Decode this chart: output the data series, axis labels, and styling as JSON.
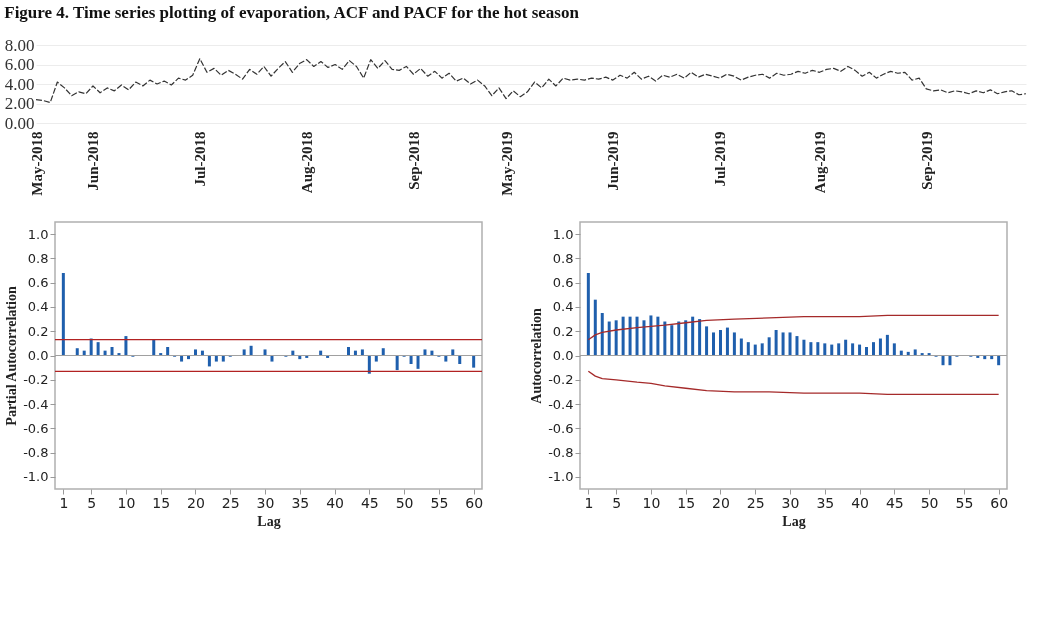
{
  "chart_data": [
    {
      "type": "line",
      "title": "Figure 4. Time series plotting of evaporation, ACF and PACF for the hot season",
      "categories": [
        "May-2018",
        null,
        null,
        null,
        null,
        null,
        null,
        null,
        "Jun-2018",
        null,
        null,
        null,
        null,
        null,
        null,
        null,
        null,
        null,
        null,
        null,
        null,
        null,
        null,
        "Jul-2018",
        null,
        null,
        null,
        null,
        null,
        null,
        null,
        null,
        null,
        null,
        null,
        null,
        null,
        null,
        "Aug-2018",
        null,
        null,
        null,
        null,
        null,
        null,
        null,
        null,
        null,
        null,
        null,
        null,
        null,
        null,
        "Sep-2018",
        null,
        null,
        null,
        null,
        null,
        null,
        null,
        null,
        null,
        null,
        null,
        null,
        "May-2019",
        null,
        null,
        null,
        null,
        null,
        null,
        null,
        null,
        null,
        null,
        null,
        null,
        null,
        null,
        "Jun-2019",
        null,
        null,
        null,
        null,
        null,
        null,
        null,
        null,
        null,
        null,
        null,
        null,
        null,
        null,
        "Jul-2019",
        null,
        null,
        null,
        null,
        null,
        null,
        null,
        null,
        null,
        null,
        null,
        null,
        null,
        "Aug-2019",
        null,
        null,
        null,
        null,
        null,
        null,
        null,
        null,
        null,
        null,
        null,
        null,
        null,
        null,
        "Sep-2019",
        null,
        null,
        null,
        null,
        null,
        null,
        null,
        null,
        null,
        null,
        null,
        null,
        null,
        null
      ],
      "series": [
        {
          "color": "#333333",
          "values": [
            2.4,
            2.3,
            2.1,
            4.2,
            3.6,
            2.8,
            3.2,
            3.0,
            3.8,
            3.1,
            3.6,
            3.3,
            3.9,
            3.4,
            4.2,
            3.8,
            4.4,
            4.0,
            4.3,
            3.9,
            4.6,
            4.4,
            4.9,
            6.6,
            5.2,
            5.6,
            4.9,
            5.4,
            5.0,
            4.5,
            5.5,
            5.0,
            5.8,
            4.8,
            5.6,
            6.3,
            5.2,
            6.1,
            6.5,
            5.8,
            6.3,
            5.7,
            6.0,
            5.5,
            6.4,
            5.8,
            4.6,
            6.5,
            5.6,
            6.4,
            5.5,
            5.4,
            5.8,
            5.0,
            5.6,
            4.8,
            5.3,
            4.6,
            5.1,
            4.3,
            4.6,
            4.0,
            4.4,
            3.8,
            2.8,
            3.6,
            2.5,
            3.3,
            2.7,
            3.2,
            4.2,
            3.6,
            4.5,
            3.8,
            4.6,
            4.4,
            4.5,
            4.4,
            4.6,
            4.5,
            4.7,
            4.4,
            4.9,
            4.6,
            5.2,
            4.5,
            4.8,
            4.3,
            4.9,
            4.7,
            5.0,
            4.6,
            5.2,
            4.7,
            5.0,
            4.8,
            4.6,
            5.0,
            4.8,
            4.4,
            4.7,
            4.9,
            5.0,
            4.6,
            5.1,
            4.9,
            5.0,
            5.3,
            5.1,
            5.4,
            5.2,
            5.5,
            5.6,
            5.3,
            5.8,
            5.4,
            4.8,
            5.2,
            4.6,
            5.0,
            5.3,
            5.1,
            5.2,
            4.4,
            4.6,
            3.5,
            3.3,
            3.4,
            3.1,
            3.3,
            3.2,
            3.0,
            3.3,
            3.1,
            3.4,
            3.0,
            3.2,
            3.3,
            2.9,
            3.0
          ]
        }
      ],
      "ylim": [
        0,
        8
      ],
      "yticks": [
        {
          "value": 0,
          "label": "0.00"
        },
        {
          "value": 2,
          "label": "2.00"
        },
        {
          "value": 4,
          "label": "4.00"
        },
        {
          "value": 6,
          "label": "6.00"
        },
        {
          "value": 8,
          "label": "8.00"
        }
      ],
      "grid": "y",
      "line_style": "dashed"
    },
    {
      "type": "bar",
      "xlabel": "Lag",
      "ylabel": "Partial Autocorrelation",
      "x": [
        1,
        2,
        3,
        4,
        5,
        6,
        7,
        8,
        9,
        10,
        11,
        12,
        13,
        14,
        15,
        16,
        17,
        18,
        19,
        20,
        21,
        22,
        23,
        24,
        25,
        26,
        27,
        28,
        29,
        30,
        31,
        32,
        33,
        34,
        35,
        36,
        37,
        38,
        39,
        40,
        41,
        42,
        43,
        44,
        45,
        46,
        47,
        48,
        49,
        50,
        51,
        52,
        53,
        54,
        55,
        56,
        57,
        58,
        59,
        60
      ],
      "series": [
        {
          "color": "#1f5fad",
          "values": [
            0.68,
            0,
            0.06,
            0.04,
            0.14,
            0.11,
            0.04,
            0.07,
            0.02,
            0.16,
            -0.01,
            0,
            0,
            0.13,
            0.02,
            0.07,
            -0.01,
            -0.05,
            -0.03,
            0.05,
            0.04,
            -0.09,
            -0.05,
            -0.05,
            -0.01,
            0,
            0.05,
            0.08,
            0,
            0.05,
            -0.05,
            0,
            -0.01,
            0.04,
            -0.03,
            -0.02,
            0,
            0.04,
            -0.02,
            0,
            0,
            0.07,
            0.04,
            0.05,
            -0.15,
            -0.05,
            0.06,
            0,
            -0.12,
            -0.01,
            -0.07,
            -0.11,
            0.05,
            0.04,
            -0.01,
            -0.05,
            0.05,
            -0.07,
            0,
            -0.1
          ]
        }
      ],
      "ref_lines": [
        {
          "axis": "y",
          "value": 0,
          "color": "#a0a0a0"
        },
        {
          "axis": "y",
          "value": 0.13,
          "color": "#b22222"
        },
        {
          "axis": "y",
          "value": -0.13,
          "color": "#b22222"
        }
      ],
      "xlim": [
        -0.2,
        61.2
      ],
      "xticks": [
        1,
        5,
        10,
        15,
        20,
        25,
        30,
        35,
        40,
        45,
        50,
        55,
        60
      ],
      "ylim": [
        -1.1,
        1.1
      ],
      "yticks": [
        {
          "value": -1,
          "label": "-1.0"
        },
        {
          "value": -0.8,
          "label": "-0.8"
        },
        {
          "value": -0.6,
          "label": "-0.6"
        },
        {
          "value": -0.4,
          "label": "-0.4"
        },
        {
          "value": -0.2,
          "label": "-0.2"
        },
        {
          "value": 0,
          "label": "0.0"
        },
        {
          "value": 0.2,
          "label": "0.2"
        },
        {
          "value": 0.4,
          "label": "0.4"
        },
        {
          "value": 0.6,
          "label": "0.6"
        },
        {
          "value": 0.8,
          "label": "0.8"
        },
        {
          "value": 1,
          "label": "1.0"
        }
      ]
    },
    {
      "type": "bar",
      "xlabel": "Lag",
      "ylabel": "Autocorrelation",
      "x": [
        1,
        2,
        3,
        4,
        5,
        6,
        7,
        8,
        9,
        10,
        11,
        12,
        13,
        14,
        15,
        16,
        17,
        18,
        19,
        20,
        21,
        22,
        23,
        24,
        25,
        26,
        27,
        28,
        29,
        30,
        31,
        32,
        33,
        34,
        35,
        36,
        37,
        38,
        39,
        40,
        41,
        42,
        43,
        44,
        45,
        46,
        47,
        48,
        49,
        50,
        51,
        52,
        53,
        54,
        55,
        56,
        57,
        58,
        59,
        60
      ],
      "series": [
        {
          "color": "#1f5fad",
          "values": [
            0.68,
            0.46,
            0.35,
            0.28,
            0.29,
            0.32,
            0.32,
            0.32,
            0.29,
            0.33,
            0.32,
            0.28,
            0.25,
            0.28,
            0.29,
            0.32,
            0.3,
            0.24,
            0.19,
            0.21,
            0.23,
            0.19,
            0.14,
            0.11,
            0.09,
            0.1,
            0.15,
            0.21,
            0.19,
            0.19,
            0.16,
            0.13,
            0.11,
            0.11,
            0.1,
            0.09,
            0.1,
            0.13,
            0.1,
            0.09,
            0.07,
            0.11,
            0.14,
            0.17,
            0.1,
            0.04,
            0.03,
            0.05,
            0.02,
            0.02,
            -0.01,
            -0.08,
            -0.08,
            -0.01,
            0,
            -0.01,
            -0.02,
            -0.03,
            -0.03,
            -0.08
          ]
        },
        {
          "type": "line",
          "color": "#a52a2a",
          "x": [
            1,
            2,
            3,
            5,
            8,
            10,
            12,
            15,
            18,
            22,
            27,
            32,
            40,
            44,
            60
          ],
          "values": [
            0.13,
            0.17,
            0.19,
            0.21,
            0.23,
            0.24,
            0.25,
            0.27,
            0.29,
            0.3,
            0.31,
            0.32,
            0.32,
            0.33,
            0.33
          ]
        },
        {
          "type": "line",
          "color": "#a52a2a",
          "x": [
            1,
            2,
            3,
            5,
            8,
            10,
            12,
            15,
            18,
            22,
            27,
            32,
            40,
            44,
            60
          ],
          "values": [
            -0.13,
            -0.17,
            -0.19,
            -0.2,
            -0.22,
            -0.23,
            -0.25,
            -0.27,
            -0.29,
            -0.3,
            -0.3,
            -0.31,
            -0.31,
            -0.32,
            -0.32
          ]
        }
      ],
      "ref_lines": [
        {
          "axis": "y",
          "value": 0,
          "color": "#a0a0a0"
        }
      ],
      "xlim": [
        -0.2,
        61.2
      ],
      "xticks": [
        1,
        5,
        10,
        15,
        20,
        25,
        30,
        35,
        40,
        45,
        50,
        55,
        60
      ],
      "ylim": [
        -1.1,
        1.1
      ],
      "yticks": [
        {
          "value": -1,
          "label": "-1.0"
        },
        {
          "value": -0.8,
          "label": "-0.8"
        },
        {
          "value": -0.6,
          "label": "-0.6"
        },
        {
          "value": -0.4,
          "label": "-0.4"
        },
        {
          "value": -0.2,
          "label": "-0.2"
        },
        {
          "value": 0,
          "label": "0.0"
        },
        {
          "value": 0.2,
          "label": "0.2"
        },
        {
          "value": 0.4,
          "label": "0.4"
        },
        {
          "value": 0.6,
          "label": "0.6"
        },
        {
          "value": 0.8,
          "label": "0.8"
        },
        {
          "value": 1,
          "label": "1.0"
        }
      ]
    }
  ]
}
